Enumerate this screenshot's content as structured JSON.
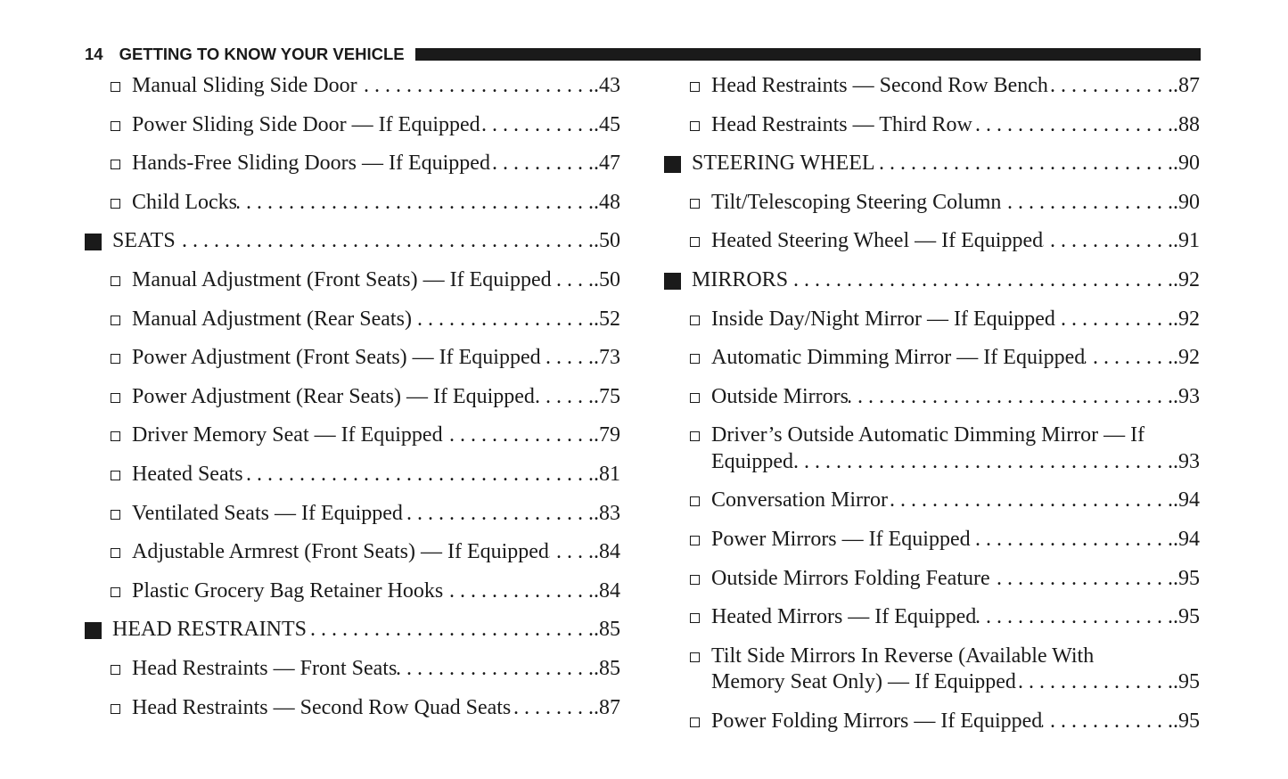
{
  "header": {
    "page_number": "14",
    "title": "GETTING TO KNOW YOUR VEHICLE"
  },
  "columns": [
    {
      "items": [
        {
          "type": "sub",
          "text": "Manual Sliding Side Door",
          "page": ".43"
        },
        {
          "type": "sub",
          "text": "Power Sliding Side Door — If Equipped",
          "page": ".45"
        },
        {
          "type": "sub",
          "text": "Hands-Free Sliding Doors — If Equipped",
          "page": ".47"
        },
        {
          "type": "sub",
          "text": "Child Locks",
          "page": ".48"
        },
        {
          "type": "section",
          "text": "SEATS",
          "page": ".50"
        },
        {
          "type": "sub",
          "text": "Manual Adjustment (Front Seats) — If Equipped",
          "page": ".50"
        },
        {
          "type": "sub",
          "text": "Manual Adjustment (Rear Seats)",
          "page": ".52"
        },
        {
          "type": "sub",
          "text": "Power Adjustment (Front Seats) — If Equipped",
          "page": ".73"
        },
        {
          "type": "sub",
          "text": "Power Adjustment (Rear Seats) — If Equipped",
          "page": ".75"
        },
        {
          "type": "sub",
          "text": "Driver Memory Seat — If Equipped",
          "page": ".79"
        },
        {
          "type": "sub",
          "text": "Heated Seats",
          "page": ".81"
        },
        {
          "type": "sub",
          "text": "Ventilated Seats — If Equipped",
          "page": ".83"
        },
        {
          "type": "sub",
          "text": "Adjustable Armrest (Front Seats) — If Equipped",
          "page": ".84"
        },
        {
          "type": "sub",
          "text": "Plastic Grocery Bag Retainer Hooks",
          "page": ".84"
        },
        {
          "type": "section",
          "text": "HEAD RESTRAINTS",
          "page": ".85"
        },
        {
          "type": "sub",
          "text": "Head Restraints — Front Seats",
          "page": ".85"
        },
        {
          "type": "sub",
          "text": "Head Restraints — Second Row Quad Seats",
          "page": ".87"
        }
      ]
    },
    {
      "items": [
        {
          "type": "sub",
          "text": "Head Restraints — Second Row Bench",
          "page": ".87"
        },
        {
          "type": "sub",
          "text": "Head Restraints — Third Row",
          "page": ".88"
        },
        {
          "type": "section",
          "text": "STEERING WHEEL",
          "page": ".90"
        },
        {
          "type": "sub",
          "text": "Tilt/Telescoping Steering Column",
          "page": ".90"
        },
        {
          "type": "sub",
          "text": "Heated Steering Wheel — If Equipped",
          "page": ".91"
        },
        {
          "type": "section",
          "text": "MIRRORS",
          "page": ".92"
        },
        {
          "type": "sub",
          "text": "Inside Day/Night Mirror — If Equipped",
          "page": ".92"
        },
        {
          "type": "sub",
          "text": "Automatic Dimming Mirror — If Equipped",
          "page": ".92"
        },
        {
          "type": "sub",
          "text": "Outside Mirrors",
          "page": ".93"
        },
        {
          "type": "sub",
          "text_line1": "Driver’s Outside Automatic Dimming Mirror — If",
          "text": "Equipped",
          "page": ".93"
        },
        {
          "type": "sub",
          "text": "Conversation Mirror",
          "page": ".94"
        },
        {
          "type": "sub",
          "text": "Power Mirrors — If Equipped",
          "page": ".94"
        },
        {
          "type": "sub",
          "text": "Outside Mirrors Folding Feature",
          "page": ".95"
        },
        {
          "type": "sub",
          "text": "Heated Mirrors — If Equipped",
          "page": ".95"
        },
        {
          "type": "sub",
          "text_line1": "Tilt Side Mirrors In Reverse (Available With",
          "text": "Memory Seat Only) — If Equipped",
          "page": ".95"
        },
        {
          "type": "sub",
          "text": "Power Folding Mirrors — If Equipped",
          "page": ".95"
        }
      ]
    }
  ]
}
